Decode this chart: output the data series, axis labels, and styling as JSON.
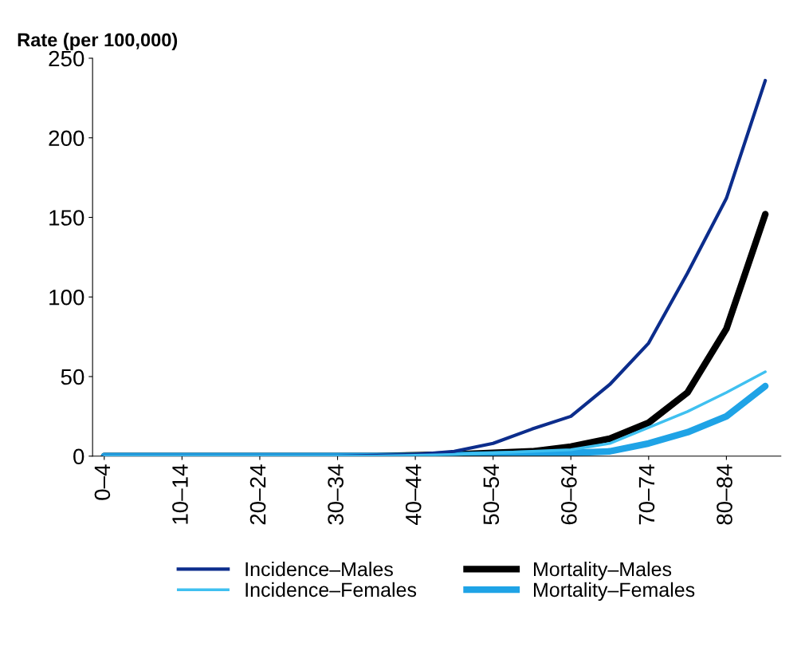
{
  "chart_data": {
    "type": "line",
    "ylabel": "Rate (per 100,000)",
    "categories": [
      "0–4",
      null,
      "10–14",
      null,
      "20–24",
      null,
      "30–34",
      null,
      "40–44",
      null,
      "50–54",
      null,
      "60–64",
      null,
      "70–74",
      null,
      "80–84",
      null
    ],
    "ylim": [
      0,
      250
    ],
    "yticks": [
      0,
      50,
      100,
      150,
      200,
      250
    ],
    "grid": false,
    "legend": "bottom",
    "marker": "none",
    "line_style": "solid",
    "series": [
      {
        "name": "Incidence–Males",
        "color": "#0c2d8c",
        "values": [
          0,
          0,
          0,
          0,
          0,
          0,
          0,
          0.5,
          1,
          3,
          8,
          17,
          25,
          45,
          71,
          115,
          162,
          236
        ]
      },
      {
        "name": "Incidence–Females",
        "color": "#3fc0f0",
        "values": [
          0,
          0,
          0,
          0,
          0,
          0,
          0,
          0,
          0.5,
          1,
          2,
          3,
          4,
          8,
          18,
          28,
          40,
          53
        ]
      },
      {
        "name": "Mortality–Males",
        "color": "#000000",
        "values": [
          0,
          0,
          0,
          0,
          0,
          0,
          0,
          0,
          0.5,
          1,
          2,
          3,
          6,
          11,
          21,
          40,
          80,
          152
        ]
      },
      {
        "name": "Mortality–Females",
        "color": "#1fa3e6",
        "values": [
          0,
          0,
          0,
          0,
          0,
          0,
          0,
          0,
          0,
          0.5,
          1,
          1.5,
          2,
          3,
          8,
          15,
          25,
          44
        ]
      }
    ]
  }
}
